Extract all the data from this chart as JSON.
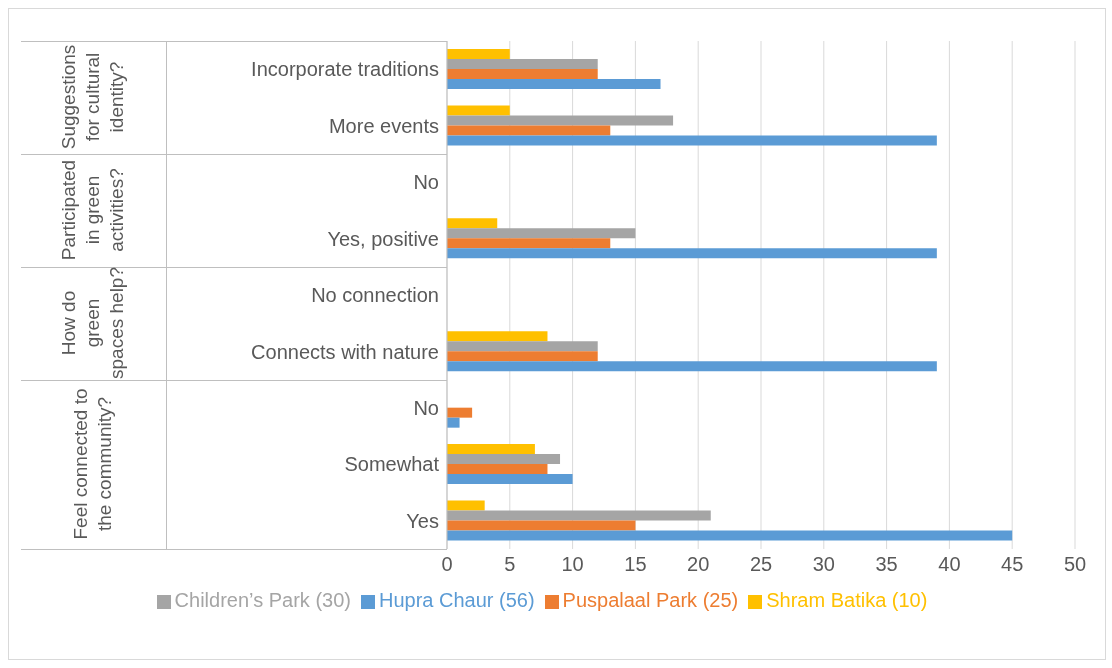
{
  "chart_data": {
    "type": "bar",
    "orientation": "horizontal",
    "categories": [
      "Incorporate traditions",
      "More events",
      "No",
      "Yes, positive",
      "No connection",
      "Connects with nature",
      "No",
      "Somewhat",
      "Yes"
    ],
    "series": [
      {
        "name": "Shram Batika (10)",
        "color": "#ffc000",
        "values": [
          5,
          5,
          null,
          4,
          null,
          8,
          null,
          7,
          3
        ]
      },
      {
        "name": "Children’s Park (30)",
        "color": "#a5a5a5",
        "values": [
          12,
          18,
          null,
          15,
          null,
          12,
          null,
          9,
          21
        ]
      },
      {
        "name": "Puspalaal Park (25)",
        "color": "#ed7d31",
        "values": [
          12,
          13,
          null,
          13,
          null,
          12,
          2,
          8,
          15
        ]
      },
      {
        "name": "Hupra Chaur (56)",
        "color": "#5b9bd5",
        "values": [
          17,
          39,
          null,
          39,
          null,
          39,
          1,
          10,
          45
        ]
      }
    ],
    "annotations": [
      "Suggestions for cultural identity?",
      "Participated in green activities?",
      "How do green spaces help?",
      "Feel connected to the community?"
    ],
    "xlim": [
      0,
      50
    ],
    "xticks": [
      0,
      5,
      10,
      15,
      20,
      25,
      30,
      35,
      40,
      45,
      50
    ],
    "grid": "x",
    "legend": "bottom"
  }
}
